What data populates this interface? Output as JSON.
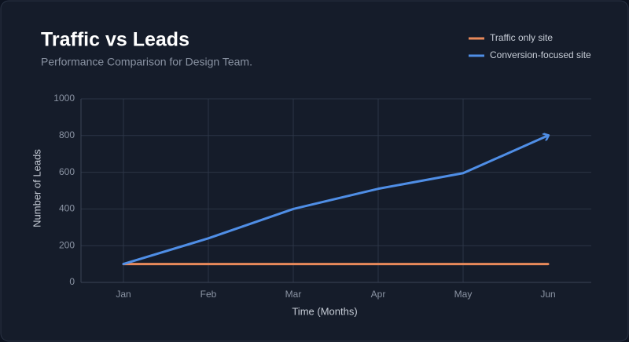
{
  "chart_data": {
    "type": "line",
    "title": "Traffic vs Leads",
    "subtitle": "Performance Comparison for Design Team.",
    "x_label": "Time (Months)",
    "y_label": "Number of Leads",
    "categories": [
      "Jan",
      "Feb",
      "Mar",
      "Apr",
      "May",
      "Jun"
    ],
    "series": [
      {
        "name": "Traffic only site",
        "color": "#e8895a",
        "values": [
          100,
          100,
          100,
          100,
          100,
          100
        ]
      },
      {
        "name": "Conversion-focused site",
        "color": "#4f8ee6",
        "values": [
          100,
          240,
          400,
          510,
          595,
          800
        ]
      }
    ],
    "ylim": [
      0,
      1000
    ],
    "yticks": [
      0,
      200,
      400,
      600,
      800,
      1000
    ],
    "grid": true,
    "legend": "top-right"
  }
}
